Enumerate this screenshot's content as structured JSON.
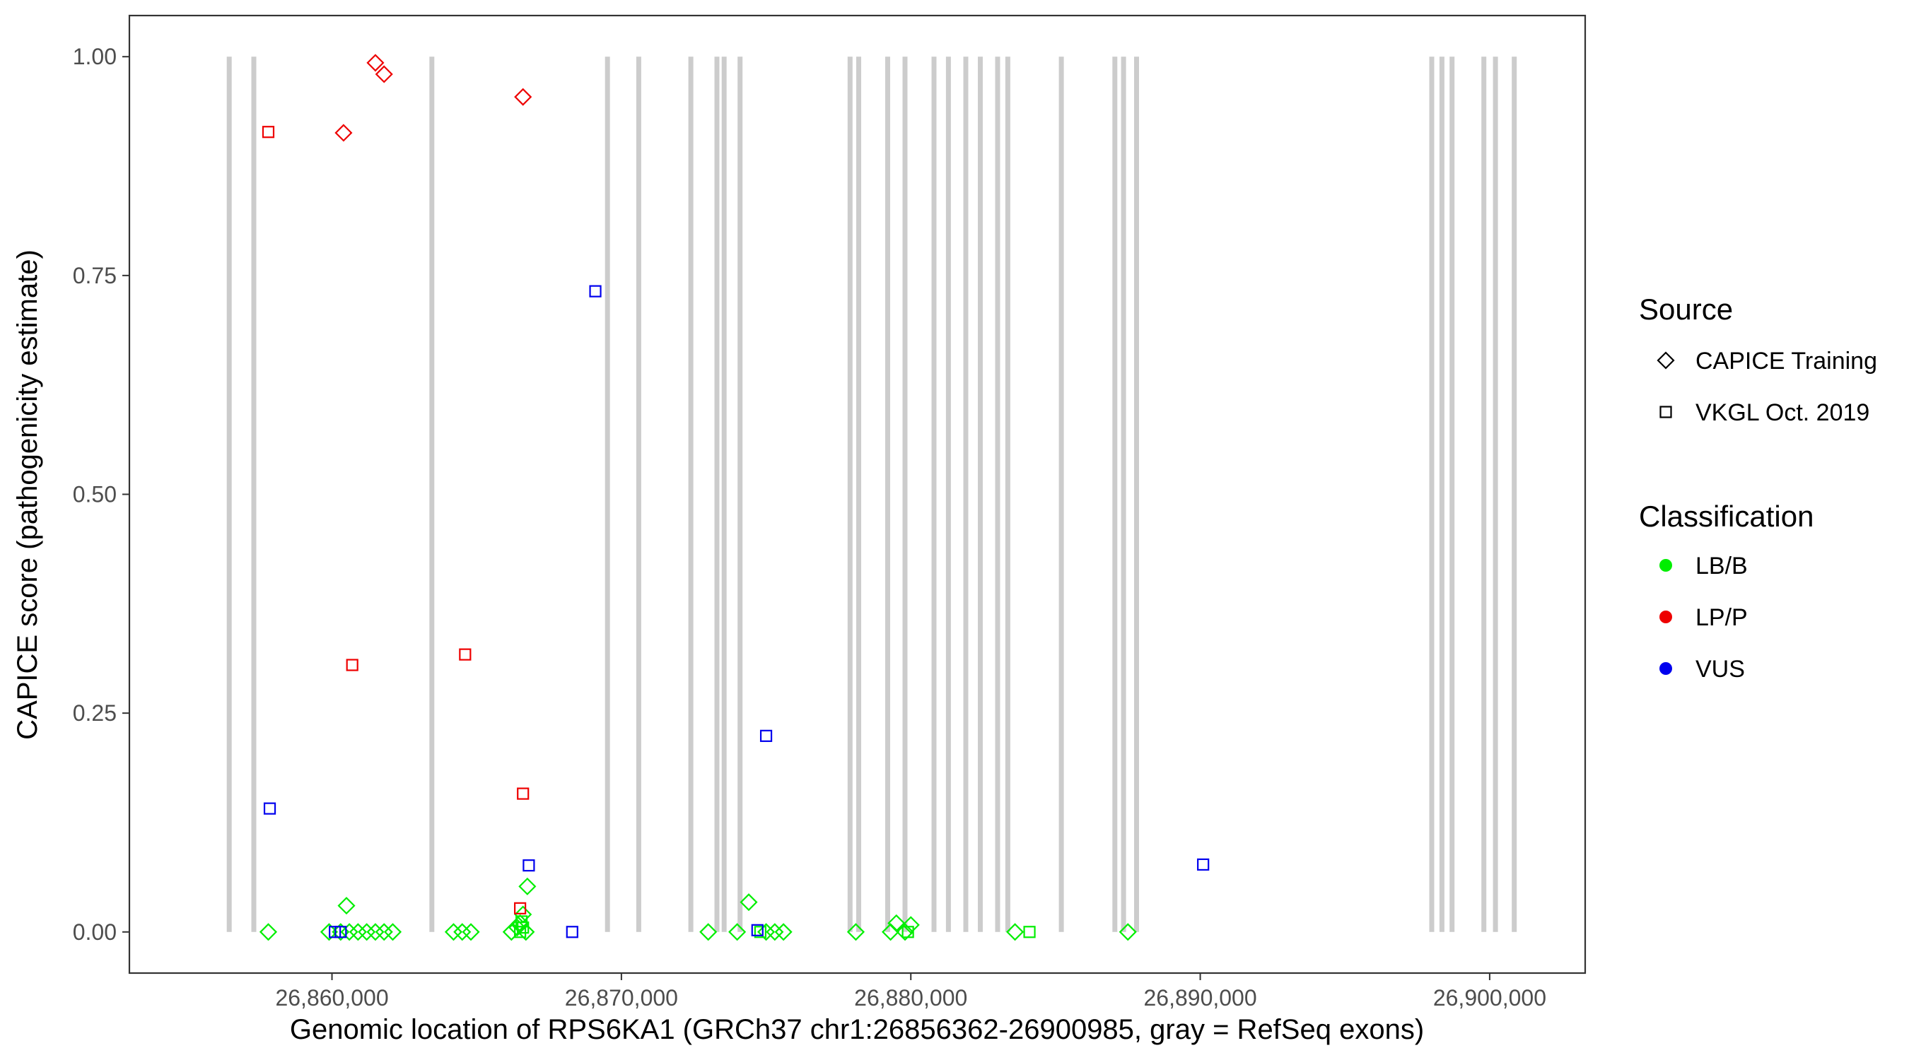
{
  "chart_data": {
    "type": "scatter",
    "xlabel": "Genomic location of RPS6KA1 (GRCh37 chr1:26856362-26900985, gray = RefSeq exons)",
    "ylabel": "CAPICE score (pathogenicity estimate)",
    "xlim": [
      26853000,
      26903300
    ],
    "ylim": [
      -0.047,
      1.047
    ],
    "x_ticks": [
      26860000,
      26870000,
      26880000,
      26890000,
      26900000
    ],
    "x_tick_labels": [
      "26,860,000",
      "26,870,000",
      "26,880,000",
      "26,890,000",
      "26,900,000"
    ],
    "y_ticks": [
      0,
      0.25,
      0.5,
      0.75,
      1.0
    ],
    "y_tick_labels": [
      "0.00",
      "0.25",
      "0.50",
      "0.75",
      "1.00"
    ],
    "grid": false,
    "exon_color": "#cccccc",
    "exons": [
      26856450,
      26857300,
      26863450,
      26869520,
      26870600,
      26872400,
      26873300,
      26873550,
      26874100,
      26877900,
      26878200,
      26879200,
      26879800,
      26880800,
      26881300,
      26881900,
      26882400,
      26883000,
      26883350,
      26885200,
      26887050,
      26887350,
      26887800,
      26898000,
      26898350,
      26898700,
      26899800,
      26900200,
      26900850
    ],
    "legend": {
      "position": "right",
      "source_title": "Source",
      "source_items": [
        {
          "label": "CAPICE Training",
          "shape": "diamond"
        },
        {
          "label": "VKGL Oct. 2019",
          "shape": "square"
        }
      ],
      "class_title": "Classification",
      "class_items": [
        {
          "label": "LB/B",
          "color": "#00ee00"
        },
        {
          "label": "LP/P",
          "color": "#ee0000"
        },
        {
          "label": "VUS",
          "color": "#0000ee"
        }
      ]
    },
    "points": [
      {
        "x": 26857800,
        "y": 0.0,
        "source": "CAPICE Training",
        "cls": "LB/B"
      },
      {
        "x": 26859900,
        "y": 0.0,
        "source": "CAPICE Training",
        "cls": "LB/B"
      },
      {
        "x": 26860300,
        "y": 0.0,
        "source": "CAPICE Training",
        "cls": "LB/B"
      },
      {
        "x": 26860600,
        "y": 0.0,
        "source": "CAPICE Training",
        "cls": "LB/B"
      },
      {
        "x": 26860900,
        "y": 0.0,
        "source": "CAPICE Training",
        "cls": "LB/B"
      },
      {
        "x": 26861200,
        "y": 0.0,
        "source": "CAPICE Training",
        "cls": "LB/B"
      },
      {
        "x": 26861500,
        "y": 0.0,
        "source": "CAPICE Training",
        "cls": "LB/B"
      },
      {
        "x": 26861800,
        "y": 0.0,
        "source": "CAPICE Training",
        "cls": "LB/B"
      },
      {
        "x": 26862100,
        "y": 0.0,
        "source": "CAPICE Training",
        "cls": "LB/B"
      },
      {
        "x": 26860500,
        "y": 0.03,
        "source": "CAPICE Training",
        "cls": "LB/B"
      },
      {
        "x": 26864200,
        "y": 0.0,
        "source": "CAPICE Training",
        "cls": "LB/B"
      },
      {
        "x": 26864500,
        "y": 0.0,
        "source": "CAPICE Training",
        "cls": "LB/B"
      },
      {
        "x": 26864800,
        "y": 0.0,
        "source": "CAPICE Training",
        "cls": "LB/B"
      },
      {
        "x": 26866200,
        "y": 0.0,
        "source": "CAPICE Training",
        "cls": "LB/B"
      },
      {
        "x": 26866400,
        "y": 0.005,
        "source": "CAPICE Training",
        "cls": "LB/B"
      },
      {
        "x": 26866500,
        "y": 0.01,
        "source": "CAPICE Training",
        "cls": "LB/B"
      },
      {
        "x": 26866600,
        "y": 0.02,
        "source": "CAPICE Training",
        "cls": "LB/B"
      },
      {
        "x": 26866700,
        "y": 0.0,
        "source": "CAPICE Training",
        "cls": "LB/B"
      },
      {
        "x": 26866750,
        "y": 0.052,
        "source": "CAPICE Training",
        "cls": "LB/B"
      },
      {
        "x": 26873000,
        "y": 0.0,
        "source": "CAPICE Training",
        "cls": "LB/B"
      },
      {
        "x": 26874000,
        "y": 0.0,
        "source": "CAPICE Training",
        "cls": "LB/B"
      },
      {
        "x": 26874400,
        "y": 0.034,
        "source": "CAPICE Training",
        "cls": "LB/B"
      },
      {
        "x": 26875000,
        "y": 0.0,
        "source": "CAPICE Training",
        "cls": "LB/B"
      },
      {
        "x": 26875300,
        "y": 0.0,
        "source": "CAPICE Training",
        "cls": "LB/B"
      },
      {
        "x": 26875600,
        "y": 0.0,
        "source": "CAPICE Training",
        "cls": "LB/B"
      },
      {
        "x": 26878100,
        "y": 0.0,
        "source": "CAPICE Training",
        "cls": "LB/B"
      },
      {
        "x": 26879300,
        "y": 0.0,
        "source": "CAPICE Training",
        "cls": "LB/B"
      },
      {
        "x": 26879500,
        "y": 0.01,
        "source": "CAPICE Training",
        "cls": "LB/B"
      },
      {
        "x": 26879800,
        "y": 0.0,
        "source": "CAPICE Training",
        "cls": "LB/B"
      },
      {
        "x": 26880000,
        "y": 0.008,
        "source": "CAPICE Training",
        "cls": "LB/B"
      },
      {
        "x": 26883600,
        "y": 0.0,
        "source": "CAPICE Training",
        "cls": "LB/B"
      },
      {
        "x": 26887500,
        "y": 0.0,
        "source": "CAPICE Training",
        "cls": "LB/B"
      },
      {
        "x": 26866500,
        "y": 0.0,
        "source": "VKGL Oct. 2019",
        "cls": "LB/B"
      },
      {
        "x": 26866600,
        "y": 0.005,
        "source": "VKGL Oct. 2019",
        "cls": "LB/B"
      },
      {
        "x": 26866550,
        "y": 0.012,
        "source": "VKGL Oct. 2019",
        "cls": "LB/B"
      },
      {
        "x": 26874800,
        "y": 0.0,
        "source": "VKGL Oct. 2019",
        "cls": "LB/B"
      },
      {
        "x": 26879900,
        "y": 0.0,
        "source": "VKGL Oct. 2019",
        "cls": "LB/B"
      },
      {
        "x": 26884100,
        "y": 0.0,
        "source": "VKGL Oct. 2019",
        "cls": "LB/B"
      },
      {
        "x": 26861500,
        "y": 0.993,
        "source": "CAPICE Training",
        "cls": "LP/P"
      },
      {
        "x": 26861800,
        "y": 0.98,
        "source": "CAPICE Training",
        "cls": "LP/P"
      },
      {
        "x": 26860400,
        "y": 0.913,
        "source": "CAPICE Training",
        "cls": "LP/P"
      },
      {
        "x": 26866600,
        "y": 0.954,
        "source": "CAPICE Training",
        "cls": "LP/P"
      },
      {
        "x": 26857800,
        "y": 0.914,
        "source": "VKGL Oct. 2019",
        "cls": "LP/P"
      },
      {
        "x": 26860700,
        "y": 0.305,
        "source": "VKGL Oct. 2019",
        "cls": "LP/P"
      },
      {
        "x": 26864600,
        "y": 0.317,
        "source": "VKGL Oct. 2019",
        "cls": "LP/P"
      },
      {
        "x": 26866600,
        "y": 0.158,
        "source": "VKGL Oct. 2019",
        "cls": "LP/P"
      },
      {
        "x": 26866500,
        "y": 0.027,
        "source": "VKGL Oct. 2019",
        "cls": "LP/P"
      },
      {
        "x": 26857850,
        "y": 0.141,
        "source": "VKGL Oct. 2019",
        "cls": "VUS"
      },
      {
        "x": 26860100,
        "y": 0.0,
        "source": "VKGL Oct. 2019",
        "cls": "VUS"
      },
      {
        "x": 26860300,
        "y": 0.0,
        "source": "VKGL Oct. 2019",
        "cls": "VUS"
      },
      {
        "x": 26866800,
        "y": 0.076,
        "source": "VKGL Oct. 2019",
        "cls": "VUS"
      },
      {
        "x": 26868300,
        "y": 0.0,
        "source": "VKGL Oct. 2019",
        "cls": "VUS"
      },
      {
        "x": 26869100,
        "y": 0.732,
        "source": "VKGL Oct. 2019",
        "cls": "VUS"
      },
      {
        "x": 26874700,
        "y": 0.002,
        "source": "VKGL Oct. 2019",
        "cls": "VUS"
      },
      {
        "x": 26875000,
        "y": 0.224,
        "source": "VKGL Oct. 2019",
        "cls": "VUS"
      },
      {
        "x": 26890100,
        "y": 0.077,
        "source": "VKGL Oct. 2019",
        "cls": "VUS"
      }
    ]
  }
}
